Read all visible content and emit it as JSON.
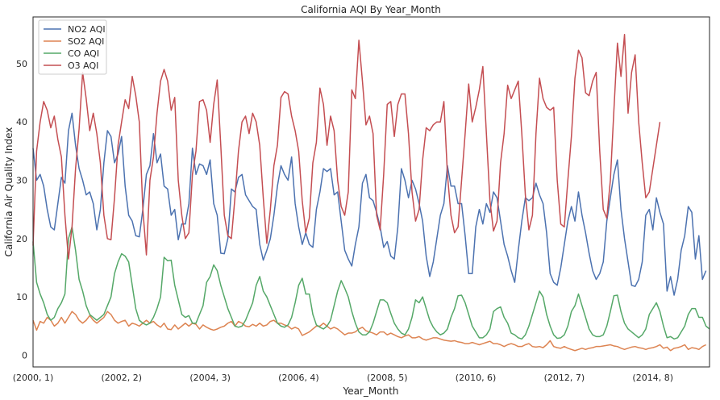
{
  "chart_data": {
    "type": "line",
    "title": "California AQI By Year_Month",
    "xlabel": "Year_Month",
    "ylabel": "California Air Quality Index",
    "xlim": [
      0,
      191
    ],
    "ylim": [
      -2,
      58
    ],
    "yticks": [
      0,
      10,
      20,
      30,
      40,
      50
    ],
    "xticks": [
      {
        "pos": 0,
        "label": "(2000, 1)"
      },
      {
        "pos": 25,
        "label": "(2002, 2)"
      },
      {
        "pos": 50,
        "label": "(2004, 3)"
      },
      {
        "pos": 75,
        "label": "(2006, 4)"
      },
      {
        "pos": 100,
        "label": "(2008, 5)"
      },
      {
        "pos": 125,
        "label": "(2010, 6)"
      },
      {
        "pos": 150,
        "label": "(2012, 7)"
      },
      {
        "pos": 175,
        "label": "(2014, 8)"
      }
    ],
    "grid": false,
    "legend_position": "upper-left",
    "series": [
      {
        "name": "NO2 AQI",
        "color": "#4c72b0",
        "values": [
          35.5,
          30,
          31,
          29,
          25,
          22,
          21.5,
          26,
          30.5,
          29.5,
          38.5,
          41.5,
          36,
          32,
          30,
          27.5,
          28,
          26,
          21.5,
          25,
          33,
          38.5,
          37.5,
          33,
          34.5,
          37.5,
          29,
          24,
          23,
          20.5,
          20.3,
          25,
          31,
          32.5,
          38,
          33,
          34.5,
          29,
          28.5,
          24,
          25,
          19.8,
          22.5,
          22.5,
          26,
          35.5,
          31,
          32.8,
          32.5,
          31,
          33.5,
          26,
          24,
          17.5,
          17.4,
          20,
          28.5,
          28,
          30.5,
          31,
          27.5,
          26.5,
          25.5,
          25,
          19,
          16.3,
          18,
          20,
          24,
          29,
          32.5,
          31,
          30,
          34,
          26,
          22,
          19,
          21,
          19,
          18.5,
          25,
          28,
          32,
          31.5,
          32,
          27.5,
          28,
          23,
          18,
          16.5,
          15.3,
          19,
          22,
          29.5,
          31,
          27,
          26.5,
          24.5,
          22,
          18.5,
          19.5,
          17,
          16.5,
          22,
          32,
          30,
          27,
          30,
          28.5,
          26,
          23,
          17,
          13.5,
          16,
          20,
          24,
          26,
          32.5,
          29,
          29,
          26,
          26,
          20.5,
          14,
          14,
          22,
          25,
          22.5,
          26,
          24.5,
          28,
          27,
          23,
          19,
          17,
          14.5,
          12.5,
          18,
          23,
          27,
          26.5,
          27,
          29.5,
          27.5,
          26,
          21,
          14,
          12.5,
          12,
          15,
          19,
          23,
          25.5,
          23,
          28,
          24,
          21,
          17.5,
          14.5,
          13,
          14,
          16,
          23,
          27,
          31,
          33.5,
          25,
          20,
          16,
          12,
          11.8,
          13,
          16,
          24,
          25,
          21.5,
          27,
          24.5,
          22.5,
          11,
          13.5,
          10.3,
          13,
          18,
          20.5,
          25.5,
          24.5,
          16.5,
          20.5,
          13,
          14.5
        ]
      },
      {
        "name": "SO2 AQI",
        "color": "#dd8452",
        "values": [
          6,
          4.3,
          5.8,
          5.5,
          6.5,
          6,
          5,
          5.5,
          6.5,
          5.5,
          6.5,
          7.5,
          7,
          6,
          5.5,
          6,
          6.8,
          6,
          5.5,
          6,
          6.5,
          7.5,
          7,
          6,
          5.5,
          5.8,
          6,
          5,
          5.5,
          5.3,
          5,
          5.5,
          6,
          5.5,
          5.8,
          5.2,
          4.8,
          5.5,
          4.5,
          4.4,
          5.2,
          4.5,
          5,
          5.5,
          5,
          5.5,
          5.3,
          4.5,
          5.2,
          4.8,
          4.5,
          4.3,
          4.5,
          4.8,
          5,
          5.5,
          5.8,
          5,
          5.8,
          5.5,
          5,
          4.9,
          5.3,
          5,
          5.5,
          5,
          5.2,
          5.8,
          6,
          5.5,
          5.5,
          5.2,
          5,
          4.5,
          4.8,
          4.5,
          3.4,
          3.7,
          4,
          4.5,
          5,
          5,
          5.5,
          5,
          4.5,
          4.8,
          4.5,
          4,
          3.5,
          3.8,
          3.8,
          4,
          4.5,
          4.8,
          4.2,
          4,
          3.8,
          3.5,
          4,
          4,
          3.5,
          3.8,
          3.5,
          3.2,
          3,
          3.3,
          3.5,
          3,
          3,
          3.2,
          2.8,
          2.6,
          2.8,
          3,
          3,
          2.8,
          2.6,
          2.5,
          2.4,
          2.5,
          2.3,
          2.2,
          2,
          2,
          2.2,
          2,
          1.8,
          2,
          2.2,
          2.4,
          2,
          2,
          1.8,
          1.5,
          1.8,
          2,
          1.8,
          1.5,
          1.5,
          1.8,
          2,
          1.5,
          1.4,
          1.5,
          1.3,
          1.8,
          2.5,
          1.5,
          1.3,
          1.2,
          1.5,
          1.2,
          1,
          0.8,
          1,
          1.2,
          1,
          1.2,
          1.3,
          1.5,
          1.5,
          1.6,
          1.7,
          1.8,
          1.6,
          1.5,
          1.2,
          1,
          1.2,
          1.4,
          1.5,
          1.3,
          1.2,
          1,
          1.2,
          1.3,
          1.5,
          1.8,
          1.2,
          1.4,
          0.8,
          1.2,
          1.3,
          1.5,
          1.8,
          1,
          1.3,
          1.2,
          1,
          1.5,
          1.8
        ]
      },
      {
        "name": "CO AQI",
        "color": "#55a868",
        "values": [
          19.5,
          12.5,
          10.5,
          9,
          7,
          6,
          6.5,
          8,
          9,
          10.5,
          20,
          22,
          18,
          13,
          11,
          8.5,
          7,
          6.5,
          6,
          6.5,
          7,
          8.5,
          10,
          14,
          16,
          17.4,
          17,
          16,
          12,
          8,
          6,
          5.5,
          5.2,
          5.5,
          6.5,
          8,
          10,
          16.8,
          16.2,
          16.3,
          12,
          9.5,
          7,
          6.5,
          6.8,
          5.5,
          5.5,
          7,
          8.5,
          12.5,
          13.5,
          15.5,
          14.5,
          12,
          10,
          8,
          6.5,
          5,
          4.8,
          5,
          6,
          7.5,
          9,
          12,
          13.5,
          11,
          10,
          8.5,
          7,
          5.5,
          5,
          4.8,
          5.2,
          6.5,
          9,
          12,
          13.2,
          10.5,
          10.5,
          7,
          5.2,
          4.8,
          4.5,
          5,
          6,
          8.5,
          11,
          12.8,
          11.5,
          10,
          7.5,
          5.5,
          4,
          3.5,
          3.5,
          4,
          5.5,
          7.5,
          9.5,
          9.5,
          9,
          7.2,
          5.5,
          4.5,
          3.8,
          3.5,
          4.5,
          6.5,
          9.5,
          9,
          10,
          8,
          6,
          4.8,
          4,
          3.5,
          3.8,
          4.5,
          6.5,
          8,
          10.2,
          10.3,
          9,
          7,
          5,
          4,
          3,
          3,
          3.5,
          4.5,
          7.5,
          8,
          8.3,
          6.5,
          5.5,
          3.8,
          3.5,
          3,
          2.8,
          3.5,
          5,
          7,
          9,
          11,
          10,
          7,
          5,
          3.5,
          2.9,
          3,
          3.5,
          5,
          7.5,
          8.5,
          10.5,
          8.5,
          6.5,
          4.5,
          3.5,
          3.2,
          3.2,
          3.5,
          5,
          7.5,
          10.2,
          10.3,
          7.5,
          5.5,
          4.5,
          4,
          3.5,
          3,
          3.5,
          4.5,
          7,
          8,
          9,
          7.5,
          5,
          3,
          3.2,
          2.8,
          3,
          4,
          5,
          7,
          8,
          8,
          6.5,
          6.5,
          5,
          4.5
        ]
      },
      {
        "name": "O3 AQI",
        "color": "#c44e52",
        "values": [
          18.8,
          35,
          40,
          43.5,
          42,
          39,
          41,
          37,
          34,
          24,
          16.5,
          22,
          32,
          38.8,
          48.5,
          44,
          38.5,
          41.5,
          38,
          33,
          24,
          20,
          19.8,
          27,
          36,
          40,
          43.8,
          42.3,
          47.8,
          44.5,
          40,
          25,
          17.2,
          30,
          34,
          41.5,
          47,
          49,
          47,
          42,
          44.2,
          30,
          24,
          20,
          21,
          31,
          35,
          43.5,
          43.8,
          42,
          36.5,
          43,
          47.2,
          36,
          24,
          20.5,
          20,
          27,
          35,
          40,
          41,
          38,
          41.5,
          40,
          36,
          27,
          19.2,
          25,
          32.5,
          36,
          44.2,
          45.2,
          44.8,
          41,
          38.5,
          35,
          26.5,
          21,
          23.5,
          33,
          36.5,
          45.8,
          43,
          36,
          41,
          38.5,
          30,
          25.5,
          24,
          28,
          45.5,
          44,
          54,
          47,
          39.5,
          41,
          38,
          24,
          21.5,
          31,
          43,
          43.5,
          37.5,
          43,
          44.8,
          44.8,
          38,
          28,
          23,
          25,
          33.5,
          39,
          38.5,
          39.5,
          40,
          40,
          43.5,
          31,
          24,
          21,
          22,
          30,
          38,
          46.5,
          40,
          42.5,
          45.5,
          49.5,
          38,
          26.5,
          21.3,
          23,
          33,
          38,
          46.3,
          44,
          45.5,
          47,
          38,
          27.5,
          21.5,
          24,
          38,
          47.5,
          44,
          42.5,
          42,
          42.5,
          30,
          22.5,
          22,
          30,
          37.5,
          47.5,
          52.3,
          51,
          45,
          44.5,
          47,
          48.5,
          35,
          25,
          23.5,
          30,
          42,
          53.5,
          47.8,
          55,
          41.5,
          48.5,
          51.5,
          40,
          33,
          27,
          28,
          32,
          36,
          40
        ]
      }
    ]
  }
}
